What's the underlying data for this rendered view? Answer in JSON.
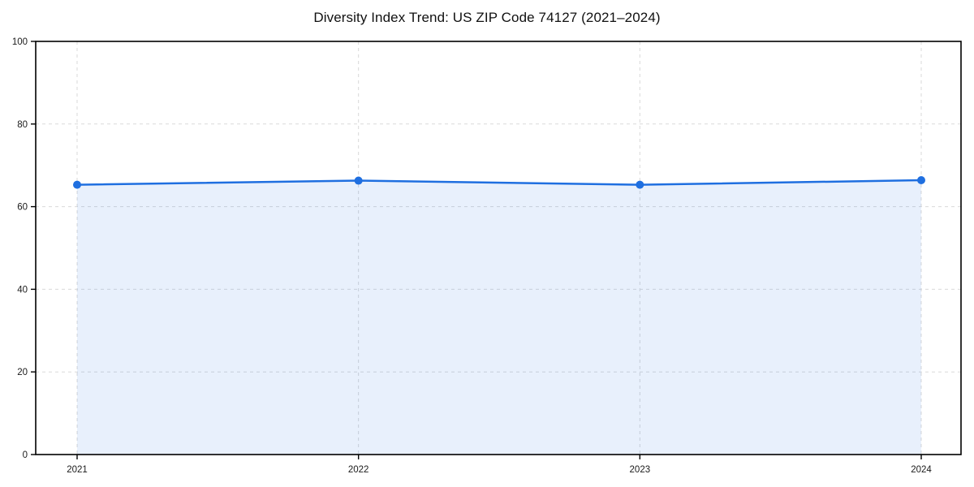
{
  "figure": {
    "title": "Diversity Index Trend: US ZIP Code 74127 (2021–2024)"
  },
  "chart_data": {
    "type": "area",
    "title": "Diversity Index Trend: US ZIP Code 74127 (2021–2024)",
    "x": [
      2021,
      2022,
      2023,
      2024
    ],
    "series": [
      {
        "name": "Diversity Index",
        "values": [
          65.3,
          66.3,
          65.3,
          66.4
        ]
      }
    ],
    "xlabel": "",
    "ylabel": "",
    "ylim": [
      0,
      100
    ],
    "yticks": [
      0,
      20,
      40,
      60,
      80,
      100
    ],
    "xticks": [
      2021,
      2022,
      2023,
      2024
    ],
    "grid": true,
    "grid_style": "dashed",
    "legend": "none",
    "colors": {
      "line": "#1f6fe0",
      "marker": "#1f6fe0",
      "fill": "rgba(31,111,224,0.10)",
      "grid": "#d9d9d9",
      "frame": "#000000",
      "tick_label": "#1a1a1a",
      "background": "#ffffff"
    },
    "marker": "circle",
    "marker_radius": 5,
    "line_width": 2.5
  }
}
